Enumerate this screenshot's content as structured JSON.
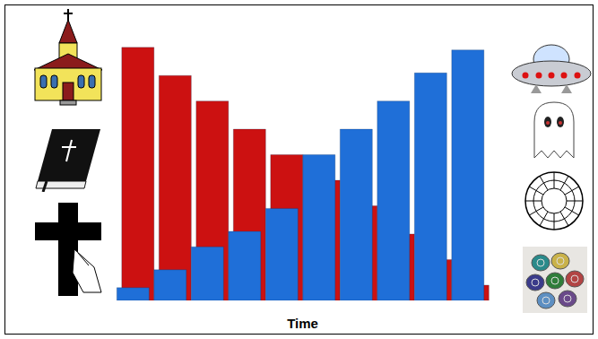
{
  "chart_data": {
    "type": "bar",
    "x_label": "Time",
    "categories": [
      null,
      null,
      null,
      null,
      null,
      null,
      null,
      null,
      null,
      null
    ],
    "series": [
      {
        "color": "#cc1111",
        "values": [
          99,
          88,
          78,
          67,
          57,
          47,
          37,
          26,
          16,
          6
        ]
      },
      {
        "color": "#1f6fd8",
        "values": [
          5,
          12,
          21,
          27,
          36,
          57,
          67,
          78,
          89,
          98
        ]
      }
    ],
    "ylim": [
      0,
      100
    ],
    "tick_labels": false
  }
}
